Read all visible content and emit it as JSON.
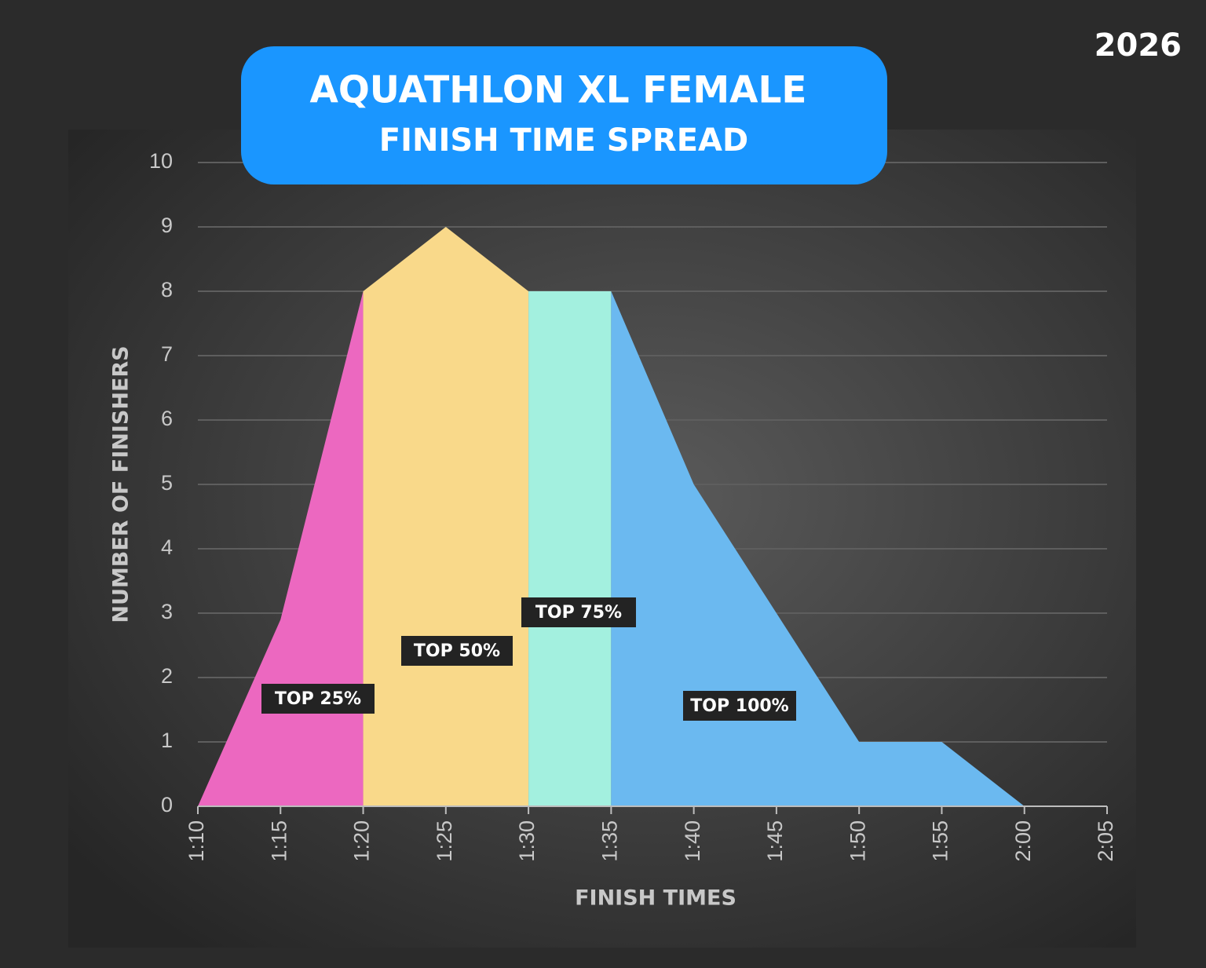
{
  "year_label": "2026",
  "chart_data": {
    "type": "area",
    "title": "AQUATHLON XL FEMALE",
    "subtitle": "FINISH TIME SPREAD",
    "x_label": "FINISH TIMES",
    "y_label": "NUMBER OF FINISHERS",
    "categories": [
      "1:10",
      "1:15",
      "1:20",
      "1:25",
      "1:30",
      "1:35",
      "1:40",
      "1:45",
      "1:50",
      "1:55",
      "2:00",
      "2:05"
    ],
    "series": [
      {
        "name": "TOP 25%",
        "color": "#ec68c0",
        "values": [
          0,
          2.9,
          8,
          null,
          null,
          null,
          null,
          null,
          null,
          null,
          null,
          null
        ]
      },
      {
        "name": "TOP 50%",
        "color": "#f9d98a",
        "values": [
          null,
          null,
          8,
          9,
          8,
          null,
          null,
          null,
          null,
          null,
          null,
          null
        ]
      },
      {
        "name": "TOP 75%",
        "color": "#a3f0df",
        "values": [
          null,
          null,
          null,
          null,
          8,
          8,
          null,
          null,
          null,
          null,
          null,
          null
        ]
      },
      {
        "name": "TOP 100%",
        "color": "#6bb9f0",
        "values": [
          null,
          null,
          null,
          null,
          null,
          8,
          5,
          3,
          1,
          1,
          0,
          null
        ]
      }
    ],
    "ylim": [
      0,
      10
    ],
    "yticks": [
      0,
      1,
      2,
      3,
      4,
      5,
      6,
      7,
      8,
      9,
      10
    ],
    "grid": true
  }
}
